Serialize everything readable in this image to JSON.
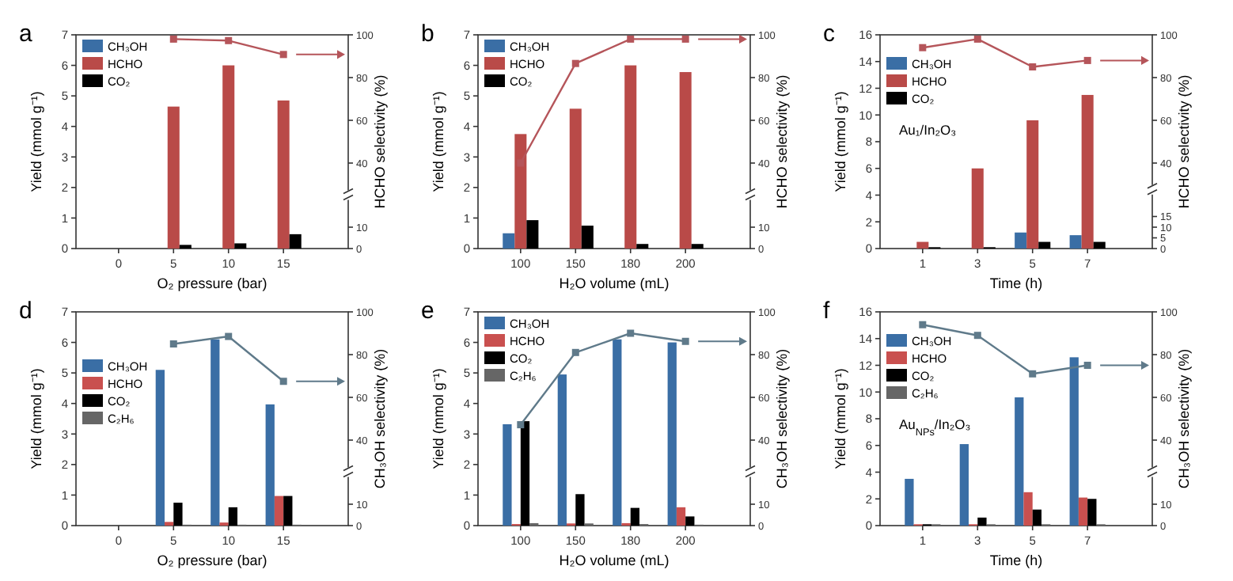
{
  "chart_data": [
    {
      "type": "bar",
      "title": "a",
      "xlabel": "O₂ pressure (bar)",
      "ylabel": "Yield (mmol g⁻¹)",
      "y2label": "HCHO selectivity (%)",
      "categories": [
        "0",
        "5",
        "10",
        "15"
      ],
      "ylim": [
        0,
        7
      ],
      "yticks": [
        0,
        1,
        2,
        3,
        4,
        5,
        6,
        7
      ],
      "y2lim": [
        0,
        100
      ],
      "y2ticks": [
        0,
        10,
        40,
        60,
        80,
        100
      ],
      "legend": "top left",
      "marker": "square",
      "series": [
        {
          "name": "CH₃OH",
          "color": "#3a6ea5",
          "values": [
            0,
            0,
            0,
            0
          ]
        },
        {
          "name": "HCHO",
          "color": "#b94a48",
          "values": [
            0,
            4.65,
            6.0,
            4.85
          ]
        },
        {
          "name": "CO₂",
          "color": "#000000",
          "values": [
            0,
            0.12,
            0.17,
            0.47
          ]
        },
        {
          "type": "line",
          "axis": "y2",
          "color": "#b5555a",
          "values": [
            null,
            98,
            97.3,
            90.8
          ]
        }
      ]
    },
    {
      "type": "bar",
      "title": "b",
      "xlabel": "H₂O volume (mL)",
      "ylabel": "Yield (mmol g⁻¹)",
      "y2label": "HCHO selectivity (%)",
      "categories": [
        "100",
        "150",
        "180",
        "200"
      ],
      "ylim": [
        0,
        7
      ],
      "yticks": [
        0,
        1,
        2,
        3,
        4,
        5,
        6,
        7
      ],
      "y2lim": [
        0,
        100
      ],
      "y2ticks": [
        0,
        10,
        40,
        60,
        80,
        100
      ],
      "legend": "top left",
      "marker": "square",
      "series": [
        {
          "name": "CH₃OH",
          "color": "#3a6ea5",
          "values": [
            0.5,
            0,
            0,
            0
          ]
        },
        {
          "name": "HCHO",
          "color": "#b94a48",
          "values": [
            3.75,
            4.58,
            6.0,
            5.78
          ]
        },
        {
          "name": "CO₂",
          "color": "#000000",
          "values": [
            0.93,
            0.75,
            0.15,
            0.15
          ]
        },
        {
          "type": "line",
          "axis": "y2",
          "color": "#b5555a",
          "values": [
            40,
            86.6,
            98,
            98
          ]
        }
      ]
    },
    {
      "type": "bar",
      "title": "c",
      "xlabel": "Time (h)",
      "ylabel": "Yield (mmol g⁻¹)",
      "y2label": "HCHO selectivity (%)",
      "categories": [
        "1",
        "3",
        "5",
        "7"
      ],
      "ylim": [
        0,
        16
      ],
      "yticks": [
        0,
        2,
        4,
        6,
        8,
        10,
        12,
        14,
        16
      ],
      "y2lim": [
        0,
        100
      ],
      "y2ticks": [
        0,
        5,
        10,
        15,
        40,
        60,
        80,
        100
      ],
      "legend": "top left",
      "marker": "square",
      "annotations": [
        "Au₁/In₂O₃"
      ],
      "series": [
        {
          "name": "CH₃OH",
          "color": "#3a6ea5",
          "values": [
            0,
            0,
            1.2,
            1.0
          ]
        },
        {
          "name": "HCHO",
          "color": "#b94a48",
          "values": [
            0.5,
            6.0,
            9.6,
            11.5
          ]
        },
        {
          "name": "CO₂",
          "color": "#000000",
          "values": [
            0.1,
            0.1,
            0.5,
            0.5
          ]
        },
        {
          "type": "line",
          "axis": "y2",
          "color": "#b5555a",
          "values": [
            94,
            98,
            85,
            88
          ]
        }
      ]
    },
    {
      "type": "bar",
      "title": "d",
      "xlabel": "O₂ pressure (bar)",
      "ylabel": "Yield (mmol g⁻¹)",
      "y2label": "CH₃OH selectivity (%)",
      "categories": [
        "0",
        "5",
        "10",
        "15"
      ],
      "ylim": [
        0,
        7
      ],
      "yticks": [
        0,
        1,
        2,
        3,
        4,
        5,
        6,
        7
      ],
      "y2lim": [
        0,
        100
      ],
      "y2ticks": [
        0,
        10,
        40,
        60,
        80,
        100
      ],
      "legend": "left",
      "marker": "square",
      "series": [
        {
          "name": "CH₃OH",
          "color": "#3a6ea5",
          "values": [
            0,
            5.1,
            6.1,
            3.97
          ]
        },
        {
          "name": "HCHO",
          "color": "#c9504f",
          "values": [
            0,
            0.12,
            0.1,
            0.97
          ]
        },
        {
          "name": "CO₂",
          "color": "#000000",
          "values": [
            0,
            0.75,
            0.6,
            0.97
          ]
        },
        {
          "name": "C₂H₆",
          "color": "#666666",
          "values": [
            0,
            0.03,
            0.03,
            0.03
          ]
        },
        {
          "type": "line",
          "axis": "y2",
          "color": "#5f7a8a",
          "values": [
            null,
            85,
            88.5,
            67.5
          ]
        }
      ]
    },
    {
      "type": "bar",
      "title": "e",
      "xlabel": "H₂O volume (mL)",
      "ylabel": "Yield (mmol g⁻¹)",
      "y2label": "CH₃OH selectivity (%)",
      "categories": [
        "100",
        "150",
        "180",
        "200"
      ],
      "ylim": [
        0,
        7
      ],
      "yticks": [
        0,
        1,
        2,
        3,
        4,
        5,
        6,
        7
      ],
      "y2lim": [
        0,
        100
      ],
      "y2ticks": [
        0,
        10,
        40,
        60,
        80,
        100
      ],
      "legend": "top left",
      "marker": "square",
      "series": [
        {
          "name": "CH₃OH",
          "color": "#3a6ea5",
          "values": [
            3.32,
            4.95,
            6.1,
            6.0
          ]
        },
        {
          "name": "HCHO",
          "color": "#c9504f",
          "values": [
            0.05,
            0.07,
            0.08,
            0.6
          ]
        },
        {
          "name": "CO₂",
          "color": "#000000",
          "values": [
            3.42,
            1.03,
            0.58,
            0.3
          ]
        },
        {
          "name": "C₂H₆",
          "color": "#666666",
          "values": [
            0.08,
            0.07,
            0.05,
            0.03
          ]
        },
        {
          "type": "line",
          "axis": "y2",
          "color": "#5f7a8a",
          "values": [
            47.2,
            81,
            90,
            86.2
          ]
        }
      ]
    },
    {
      "type": "bar",
      "title": "f",
      "xlabel": "Time (h)",
      "ylabel": "Yield (mmol g⁻¹)",
      "y2label": "CH₃OH selectivity (%)",
      "categories": [
        "1",
        "3",
        "5",
        "7"
      ],
      "ylim": [
        0,
        16
      ],
      "yticks": [
        0,
        2,
        4,
        6,
        8,
        10,
        12,
        14,
        16
      ],
      "y2lim": [
        0,
        100
      ],
      "y2ticks": [
        0,
        10,
        40,
        60,
        80,
        100
      ],
      "legend": "top left",
      "marker": "square",
      "annotations": [
        "Au$_{NPs}$/In₂O₃"
      ],
      "series": [
        {
          "name": "CH₃OH",
          "color": "#3a6ea5",
          "values": [
            3.5,
            6.1,
            9.6,
            12.6
          ]
        },
        {
          "name": "HCHO",
          "color": "#c9504f",
          "values": [
            0.1,
            0.1,
            2.5,
            2.1
          ]
        },
        {
          "name": "CO₂",
          "color": "#000000",
          "values": [
            0.1,
            0.6,
            1.2,
            2.0
          ]
        },
        {
          "name": "C₂H₆",
          "color": "#666666",
          "values": [
            0.1,
            0.1,
            0.1,
            0.1
          ]
        },
        {
          "type": "line",
          "axis": "y2",
          "color": "#5f7a8a",
          "values": [
            94,
            89,
            71,
            75
          ]
        }
      ]
    }
  ]
}
